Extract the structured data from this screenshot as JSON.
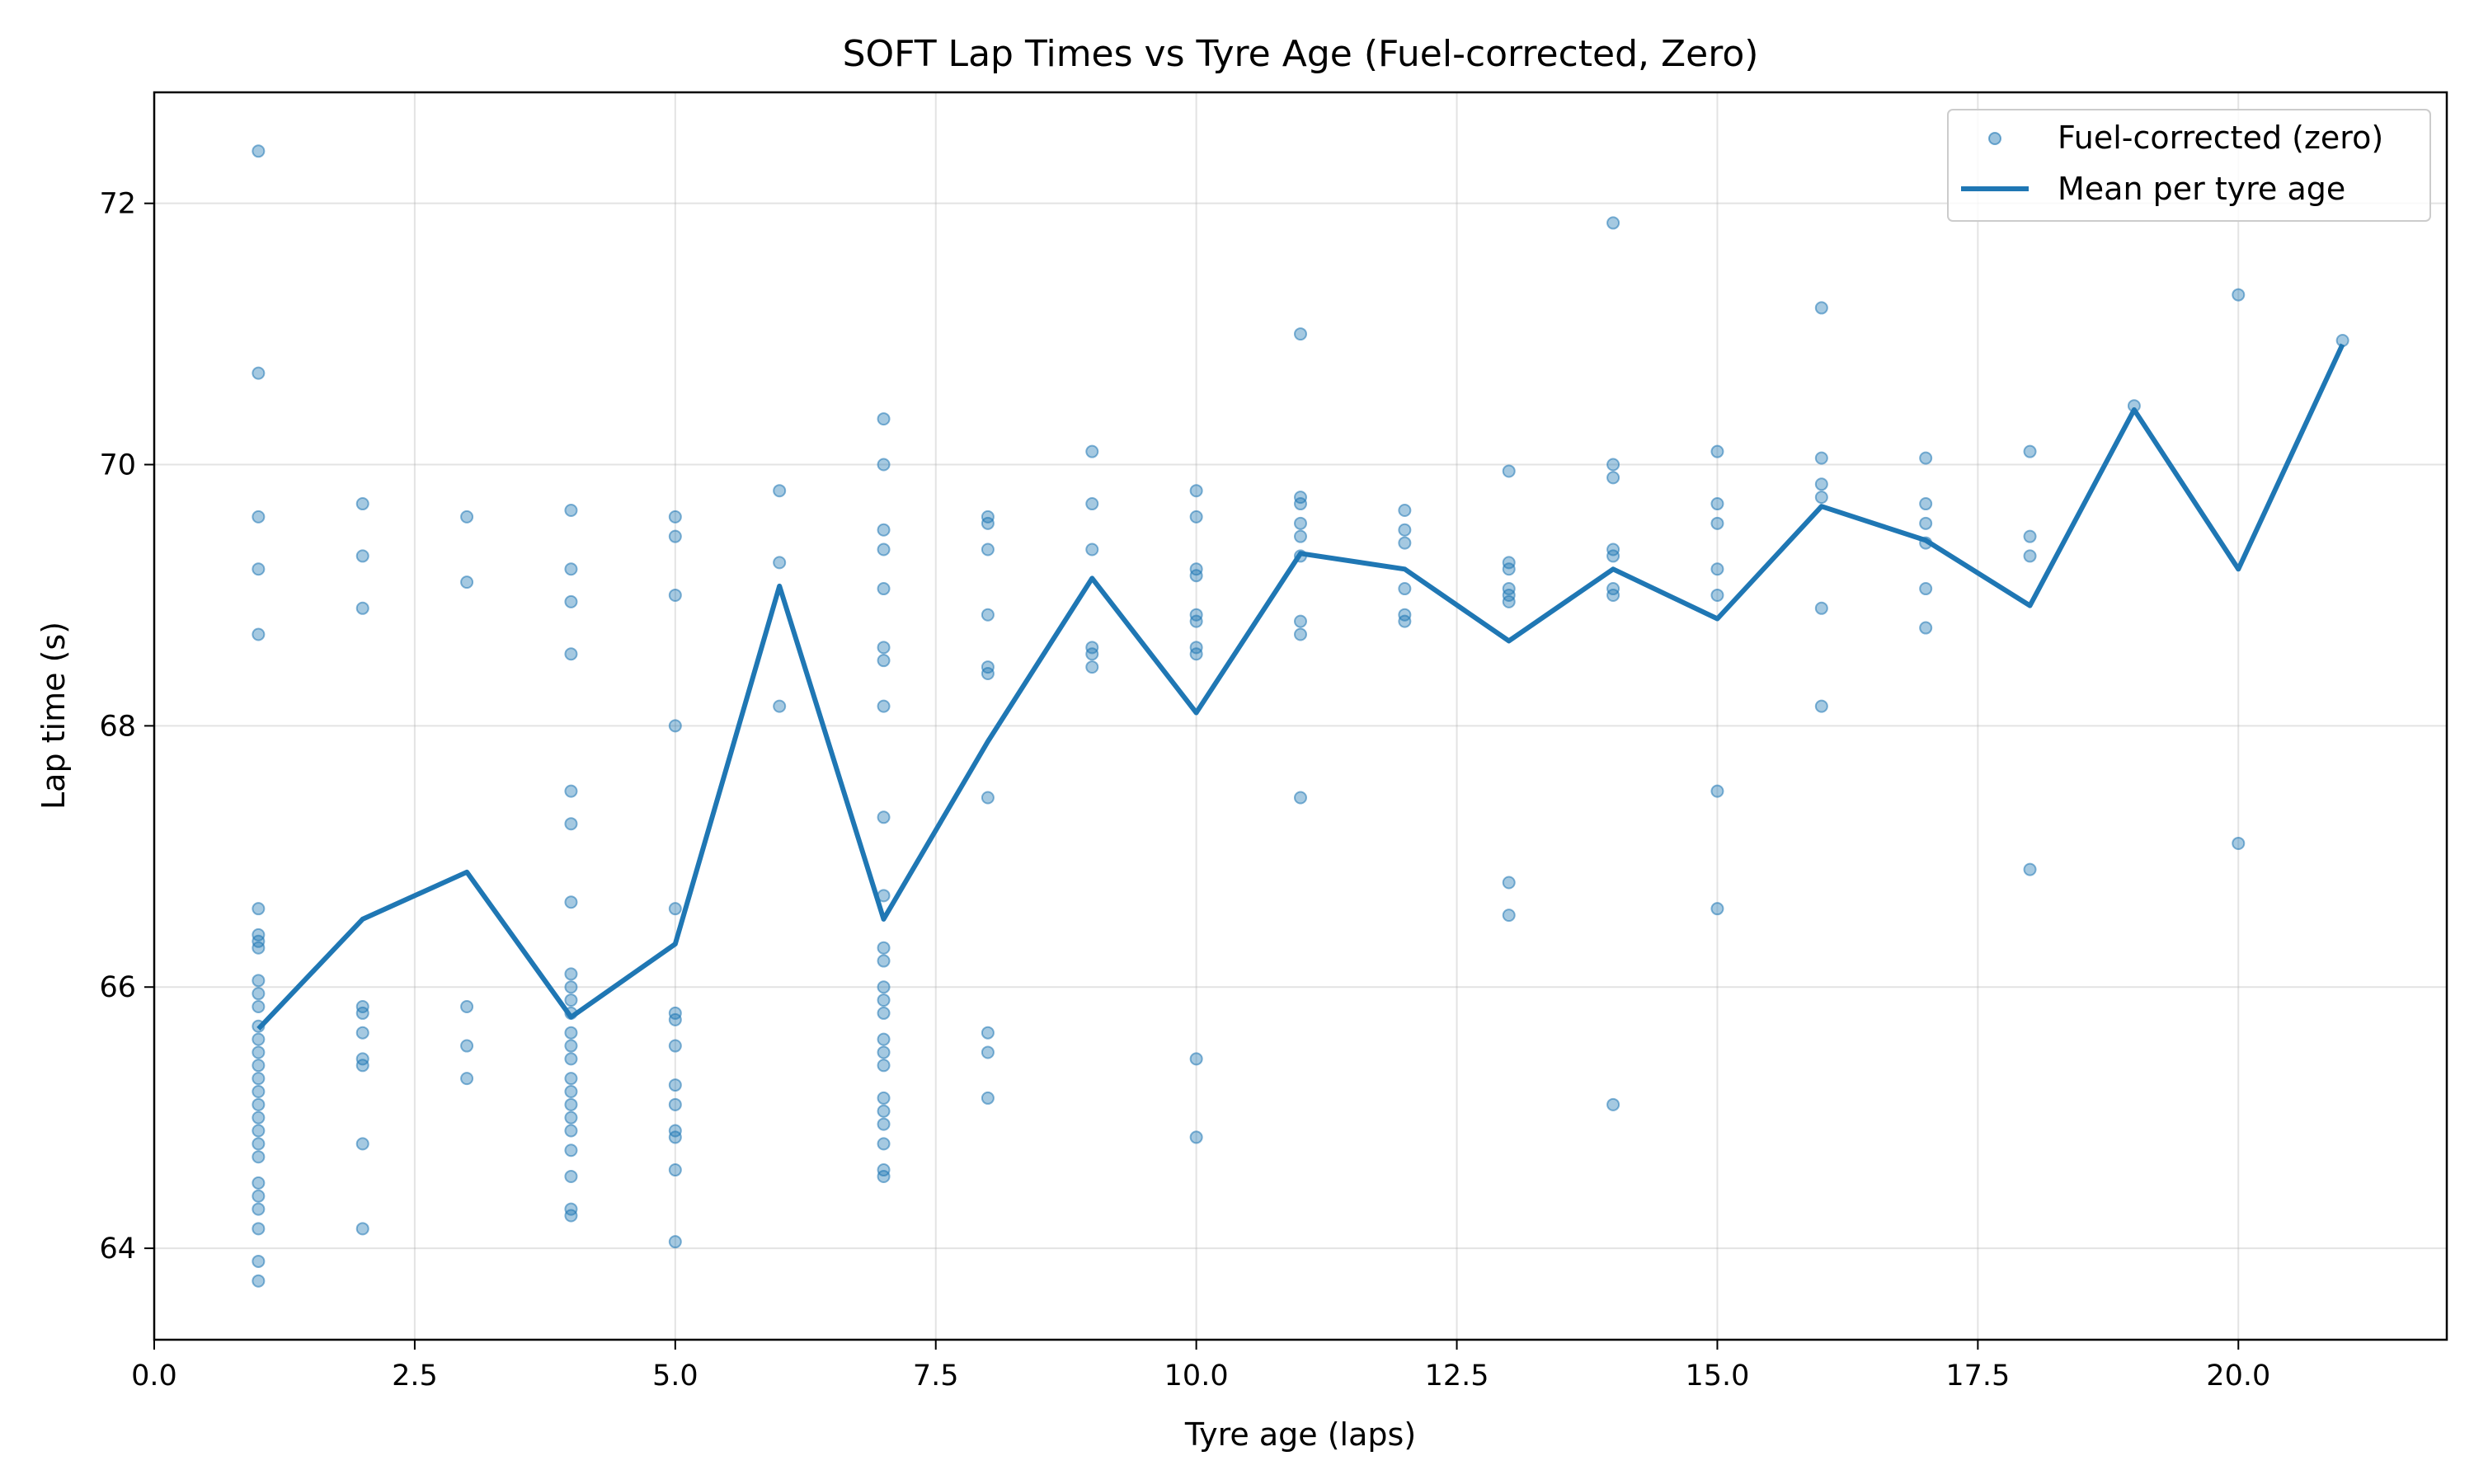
{
  "chart_data": {
    "type": "scatter",
    "title": "SOFT Lap Times vs Tyre Age (Fuel-corrected, Zero)",
    "xlabel": "Tyre age (laps)",
    "ylabel": "Lap time (s)",
    "xlim": [
      0,
      22
    ],
    "ylim": [
      63.3,
      72.85
    ],
    "x_ticks": [
      0.0,
      2.5,
      5.0,
      7.5,
      10.0,
      12.5,
      15.0,
      17.5,
      20.0
    ],
    "x_tick_labels": [
      "0.0",
      "2.5",
      "5.0",
      "7.5",
      "10.0",
      "12.5",
      "15.0",
      "17.5",
      "20.0"
    ],
    "y_ticks": [
      64,
      66,
      68,
      70,
      72
    ],
    "y_tick_labels": [
      "64",
      "66",
      "68",
      "70",
      "72"
    ],
    "grid": true,
    "legend_position": "top-right",
    "series": [
      {
        "name": "Fuel-corrected (zero)",
        "kind": "scatter",
        "color": "#1f77b4",
        "points": [
          [
            1,
            72.4
          ],
          [
            1,
            70.7
          ],
          [
            1,
            69.6
          ],
          [
            1,
            69.2
          ],
          [
            1,
            68.7
          ],
          [
            1,
            66.6
          ],
          [
            1,
            66.4
          ],
          [
            1,
            66.35
          ],
          [
            1,
            66.3
          ],
          [
            1,
            66.05
          ],
          [
            1,
            65.95
          ],
          [
            1,
            65.85
          ],
          [
            1,
            65.7
          ],
          [
            1,
            65.6
          ],
          [
            1,
            65.5
          ],
          [
            1,
            65.4
          ],
          [
            1,
            65.3
          ],
          [
            1,
            65.2
          ],
          [
            1,
            65.1
          ],
          [
            1,
            65.0
          ],
          [
            1,
            64.9
          ],
          [
            1,
            64.8
          ],
          [
            1,
            64.7
          ],
          [
            1,
            64.5
          ],
          [
            1,
            64.4
          ],
          [
            1,
            64.3
          ],
          [
            1,
            64.15
          ],
          [
            1,
            63.9
          ],
          [
            1,
            63.75
          ],
          [
            2,
            69.7
          ],
          [
            2,
            69.3
          ],
          [
            2,
            68.9
          ],
          [
            2,
            65.85
          ],
          [
            2,
            65.8
          ],
          [
            2,
            65.65
          ],
          [
            2,
            65.45
          ],
          [
            2,
            65.4
          ],
          [
            2,
            64.8
          ],
          [
            2,
            64.15
          ],
          [
            3,
            69.6
          ],
          [
            3,
            69.1
          ],
          [
            3,
            65.85
          ],
          [
            3,
            65.55
          ],
          [
            3,
            65.3
          ],
          [
            4,
            69.65
          ],
          [
            4,
            69.2
          ],
          [
            4,
            68.95
          ],
          [
            4,
            68.55
          ],
          [
            4,
            67.5
          ],
          [
            4,
            67.25
          ],
          [
            4,
            66.65
          ],
          [
            4,
            66.1
          ],
          [
            4,
            66.0
          ],
          [
            4,
            65.9
          ],
          [
            4,
            65.8
          ],
          [
            4,
            65.65
          ],
          [
            4,
            65.55
          ],
          [
            4,
            65.45
          ],
          [
            4,
            65.3
          ],
          [
            4,
            65.2
          ],
          [
            4,
            65.1
          ],
          [
            4,
            65.0
          ],
          [
            4,
            64.9
          ],
          [
            4,
            64.75
          ],
          [
            4,
            64.55
          ],
          [
            4,
            64.3
          ],
          [
            4,
            64.25
          ],
          [
            5,
            69.6
          ],
          [
            5,
            69.45
          ],
          [
            5,
            69.0
          ],
          [
            5,
            68.0
          ],
          [
            5,
            66.6
          ],
          [
            5,
            65.8
          ],
          [
            5,
            65.75
          ],
          [
            5,
            65.55
          ],
          [
            5,
            65.25
          ],
          [
            5,
            65.1
          ],
          [
            5,
            64.9
          ],
          [
            5,
            64.85
          ],
          [
            5,
            64.6
          ],
          [
            5,
            64.05
          ],
          [
            6,
            69.8
          ],
          [
            6,
            69.25
          ],
          [
            6,
            68.15
          ],
          [
            7,
            70.35
          ],
          [
            7,
            70.0
          ],
          [
            7,
            69.5
          ],
          [
            7,
            69.35
          ],
          [
            7,
            69.05
          ],
          [
            7,
            68.6
          ],
          [
            7,
            68.5
          ],
          [
            7,
            68.15
          ],
          [
            7,
            67.3
          ],
          [
            7,
            66.7
          ],
          [
            7,
            66.3
          ],
          [
            7,
            66.2
          ],
          [
            7,
            66.0
          ],
          [
            7,
            65.9
          ],
          [
            7,
            65.8
          ],
          [
            7,
            65.6
          ],
          [
            7,
            65.5
          ],
          [
            7,
            65.4
          ],
          [
            7,
            65.15
          ],
          [
            7,
            65.05
          ],
          [
            7,
            64.95
          ],
          [
            7,
            64.8
          ],
          [
            7,
            64.6
          ],
          [
            7,
            64.55
          ],
          [
            8,
            69.6
          ],
          [
            8,
            69.55
          ],
          [
            8,
            69.35
          ],
          [
            8,
            68.85
          ],
          [
            8,
            68.45
          ],
          [
            8,
            68.4
          ],
          [
            8,
            67.45
          ],
          [
            8,
            65.65
          ],
          [
            8,
            65.5
          ],
          [
            8,
            65.15
          ],
          [
            9,
            70.1
          ],
          [
            9,
            69.7
          ],
          [
            9,
            69.35
          ],
          [
            9,
            68.6
          ],
          [
            9,
            68.55
          ],
          [
            9,
            68.45
          ],
          [
            10,
            69.8
          ],
          [
            10,
            69.6
          ],
          [
            10,
            69.2
          ],
          [
            10,
            69.15
          ],
          [
            10,
            68.85
          ],
          [
            10,
            68.8
          ],
          [
            10,
            68.6
          ],
          [
            10,
            68.55
          ],
          [
            10,
            65.45
          ],
          [
            10,
            64.85
          ],
          [
            11,
            71.0
          ],
          [
            11,
            69.75
          ],
          [
            11,
            69.7
          ],
          [
            11,
            69.55
          ],
          [
            11,
            69.45
          ],
          [
            11,
            69.3
          ],
          [
            11,
            68.8
          ],
          [
            11,
            68.7
          ],
          [
            11,
            67.45
          ],
          [
            12,
            69.65
          ],
          [
            12,
            69.5
          ],
          [
            12,
            69.4
          ],
          [
            12,
            69.05
          ],
          [
            12,
            68.85
          ],
          [
            12,
            68.8
          ],
          [
            13,
            69.95
          ],
          [
            13,
            69.25
          ],
          [
            13,
            69.2
          ],
          [
            13,
            69.05
          ],
          [
            13,
            69.0
          ],
          [
            13,
            68.95
          ],
          [
            13,
            66.8
          ],
          [
            13,
            66.55
          ],
          [
            14,
            71.85
          ],
          [
            14,
            70.0
          ],
          [
            14,
            69.9
          ],
          [
            14,
            69.35
          ],
          [
            14,
            69.3
          ],
          [
            14,
            69.05
          ],
          [
            14,
            69.0
          ],
          [
            14,
            65.1
          ],
          [
            15,
            70.1
          ],
          [
            15,
            69.7
          ],
          [
            15,
            69.55
          ],
          [
            15,
            69.2
          ],
          [
            15,
            69.0
          ],
          [
            15,
            67.5
          ],
          [
            15,
            66.6
          ],
          [
            16,
            71.2
          ],
          [
            16,
            70.05
          ],
          [
            16,
            69.85
          ],
          [
            16,
            69.75
          ],
          [
            16,
            68.9
          ],
          [
            16,
            68.15
          ],
          [
            17,
            70.05
          ],
          [
            17,
            69.7
          ],
          [
            17,
            69.55
          ],
          [
            17,
            69.4
          ],
          [
            17,
            69.05
          ],
          [
            17,
            68.75
          ],
          [
            18,
            70.1
          ],
          [
            18,
            69.45
          ],
          [
            18,
            69.3
          ],
          [
            18,
            66.9
          ],
          [
            19,
            70.45
          ],
          [
            20,
            71.3
          ],
          [
            20,
            67.1
          ],
          [
            21,
            70.95
          ]
        ]
      },
      {
        "name": "Mean per tyre age",
        "kind": "line",
        "color": "#1f77b4",
        "x": [
          1,
          2,
          3,
          4,
          5,
          6,
          7,
          8,
          9,
          10,
          11,
          12,
          13,
          14,
          15,
          16,
          17,
          18,
          19,
          20,
          21
        ],
        "y": [
          65.68,
          66.52,
          66.88,
          65.77,
          66.33,
          69.07,
          66.52,
          67.88,
          69.13,
          68.1,
          69.32,
          69.2,
          68.65,
          69.2,
          68.82,
          69.68,
          69.42,
          68.92,
          70.42,
          69.2,
          70.92
        ]
      }
    ]
  }
}
